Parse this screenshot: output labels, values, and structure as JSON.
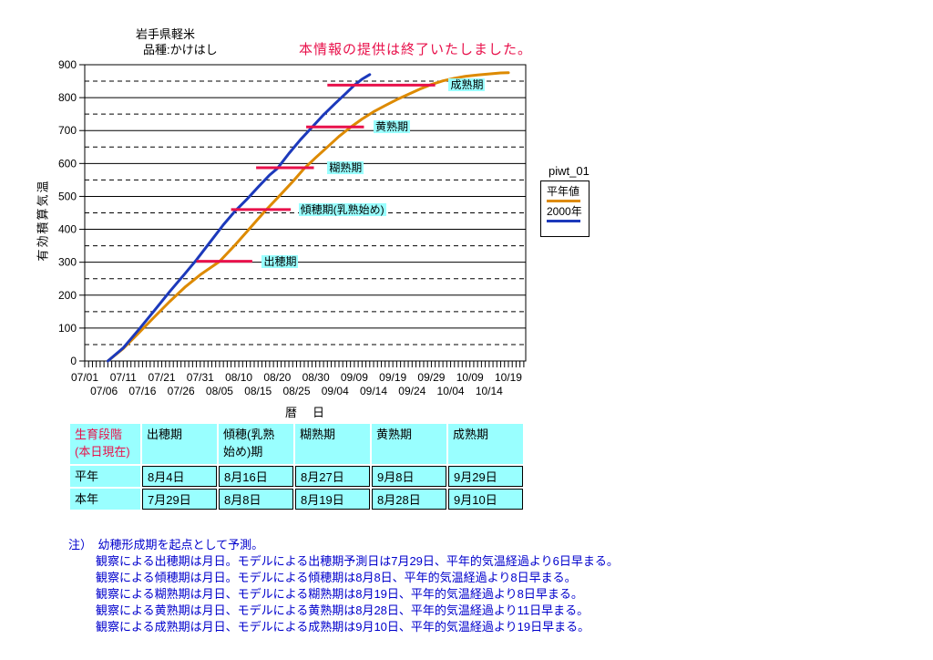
{
  "header": {
    "title_line1": "岩手県軽米",
    "title_line2": "品種:かけはし",
    "notice": "本情報の提供は終了いたしました。"
  },
  "legend": {
    "title": "piwt_01",
    "entries": [
      {
        "label": "平年値",
        "color": "#DD8A00"
      },
      {
        "label": "2000年",
        "color": "#1C39BB"
      }
    ]
  },
  "chart_data": {
    "type": "line",
    "title": "岩手県軽米 品種:かけはし",
    "xlabel": "暦　日",
    "ylabel": "有効積算気温",
    "ylim": [
      0,
      900
    ],
    "y_tick_step": 100,
    "grid": "solid lines every 100, dashed lines every 50",
    "x_days_total": 114,
    "x_start_date": "07/01",
    "x_ticks_row1": {
      "start_day": 0,
      "step_days": 10,
      "labels": [
        "07/01",
        "07/11",
        "07/21",
        "07/31",
        "08/10",
        "08/20",
        "08/30",
        "09/09",
        "09/19",
        "09/29",
        "10/09",
        "10/19"
      ]
    },
    "x_ticks_row2": {
      "start_day": 5,
      "step_days": 10,
      "labels": [
        "07/06",
        "07/16",
        "07/26",
        "08/05",
        "08/15",
        "08/25",
        "09/04",
        "09/14",
        "09/24",
        "10/04",
        "10/14"
      ]
    },
    "series": [
      {
        "name": "平年値",
        "color": "#DD8A00",
        "points": [
          [
            6,
            0
          ],
          [
            10,
            38
          ],
          [
            14,
            85
          ],
          [
            18,
            133
          ],
          [
            22,
            180
          ],
          [
            26,
            224
          ],
          [
            30,
            262
          ],
          [
            35,
            302
          ],
          [
            39,
            352
          ],
          [
            43,
            405
          ],
          [
            47,
            458
          ],
          [
            50,
            495
          ],
          [
            54,
            545
          ],
          [
            57,
            585
          ],
          [
            60,
            618
          ],
          [
            63,
            650
          ],
          [
            66,
            682
          ],
          [
            69,
            710
          ],
          [
            72,
            735
          ],
          [
            75,
            757
          ],
          [
            78,
            776
          ],
          [
            81,
            794
          ],
          [
            84,
            810
          ],
          [
            87,
            826
          ],
          [
            90,
            840
          ],
          [
            93,
            851
          ],
          [
            96,
            859
          ],
          [
            99,
            865
          ],
          [
            102,
            869
          ],
          [
            105,
            872
          ],
          [
            108,
            875
          ],
          [
            110,
            876
          ]
        ]
      },
      {
        "name": "2000年",
        "color": "#1C39BB",
        "points": [
          [
            6,
            0
          ],
          [
            10,
            40
          ],
          [
            14,
            95
          ],
          [
            18,
            152
          ],
          [
            22,
            210
          ],
          [
            26,
            265
          ],
          [
            29,
            307
          ],
          [
            33,
            368
          ],
          [
            36,
            414
          ],
          [
            39,
            455
          ],
          [
            42,
            490
          ],
          [
            45,
            528
          ],
          [
            48,
            565
          ],
          [
            50,
            585
          ],
          [
            53,
            630
          ],
          [
            56,
            672
          ],
          [
            59,
            710
          ],
          [
            62,
            748
          ],
          [
            65,
            782
          ],
          [
            68,
            815
          ],
          [
            70,
            838
          ],
          [
            72,
            856
          ],
          [
            74,
            870
          ]
        ]
      }
    ],
    "marker_color": "#E8114B",
    "annotation_bg": "#99FFFF",
    "stage_markers": [
      {
        "label": "出穂期",
        "value": 303,
        "day_start": 29,
        "day_end": 43.5,
        "label_day": 46
      },
      {
        "label": "傾穂期(乳熟始め)",
        "value": 460,
        "day_start": 38,
        "day_end": 53.5,
        "label_day": 55.5
      },
      {
        "label": "糊熟期",
        "value": 587,
        "day_start": 44.5,
        "day_end": 59.5,
        "label_day": 63
      },
      {
        "label": "黄熟期",
        "value": 711,
        "day_start": 57.5,
        "day_end": 72.5,
        "label_day": 75
      },
      {
        "label": "成熟期",
        "value": 838,
        "day_start": 63,
        "day_end": 91,
        "label_day": 94.5
      }
    ]
  },
  "table": {
    "header": [
      "生育段階\n(本日現在)",
      "出穂期",
      "傾穂(乳熟\n始め)期",
      "糊熟期",
      "黄熟期",
      "成熟期"
    ],
    "rows": [
      {
        "label": "平年",
        "dates": [
          "8月4日",
          "8月16日",
          "8月27日",
          "9月8日",
          "9月29日"
        ]
      },
      {
        "label": "本年",
        "dates": [
          "7月29日",
          "8月8日",
          "8月19日",
          "8月28日",
          "9月10日"
        ]
      }
    ]
  },
  "notes": {
    "heading": "注）　幼穂形成期を起点として予測。",
    "lines": [
      "観察による出穂期は月日。モデルによる出穂期予測日は7月29日、平年的気温経過より6日早まる。",
      "観察による傾穂期は月日。モデルによる傾穂期は8月8日、平年的気温経過より8日早まる。",
      "観察による糊熟期は月日、モデルによる糊熟期は8月19日、平年的気温経過より8日早まる。",
      "観察による黄熟期は月日、モデルによる黄熟期は8月28日、平年的気温経過より11日早まる。",
      "観察による成熟期は月日、モデルによる成熟期は9月10日、平年的気温経過より19日早まる。"
    ]
  },
  "colors": {
    "crimson_accent": "#E8114B",
    "cyan_background": "#99FFFF",
    "note_text_blue": "#0000CC",
    "series_normal_orange": "#DD8A00",
    "series_2000_blue": "#1C39BB"
  }
}
